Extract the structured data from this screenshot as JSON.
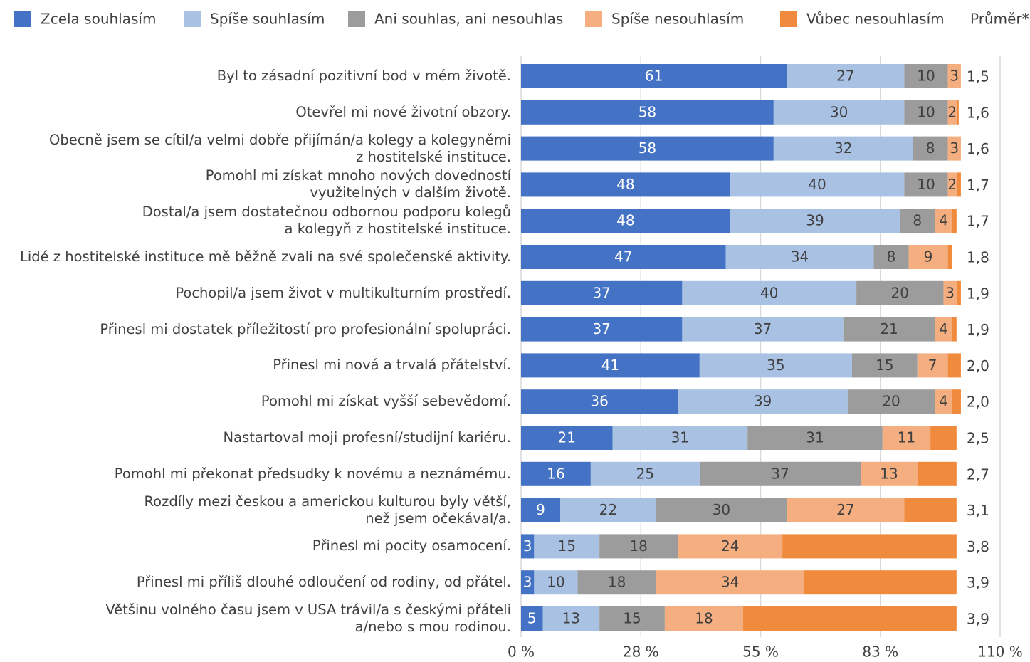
{
  "chart_data": {
    "type": "stacked_barh",
    "legend": "top",
    "grid": true,
    "categories": [
      "Byl to zásadní pozitivní bod v mém životě.",
      "Otevřel mi nové životní obzory.",
      "Obecně jsem se cítil/a velmi dobře přijímán/a kolegy a kolegyněmi\nz hostitelské instituce.",
      "Pomohl mi získat mnoho nových dovedností\nvyužitelných v dalším životě.",
      "Dostal/a jsem dostatečnou odbornou podporu kolegů\na kolegyň z hostitelské instituce.",
      "Lidé z hostitelské instituce mě běžně zvali na své společenské aktivity.",
      "Pochopil/a jsem život v multikulturním prostředí.",
      "Přinesl mi dostatek příležitostí pro profesionální spolupráci.",
      "Přinesl mi nová a trvalá přátelství.",
      "Pomohl mi získat vyšší sebevědomí.",
      "Nastartoval moji profesní/studijní kariéru.",
      "Pomohl mi překonat předsudky k novému a neznámému.",
      "Rozdíly mezi českou a americkou kulturou byly větší,\nnež jsem očekával/a.",
      "Přinesl mi pocity osamocení.",
      "Přinesl mi příliš dlouhé odloučení od rodiny, od přátel.",
      "Většinu volného času jsem v USA trávil/a s českými přáteli\na/nebo s mou rodinou."
    ],
    "series": [
      {
        "name": "Zcela souhlasím",
        "color": "#4472C4",
        "label_color": "#ffffff",
        "values": [
          61,
          58,
          58,
          48,
          48,
          47,
          37,
          37,
          41,
          36,
          21,
          16,
          9,
          3,
          3,
          5
        ]
      },
      {
        "name": "Spíše souhlasím",
        "color": "#A9C1E3",
        "label_color": "#404040",
        "values": [
          27,
          30,
          32,
          40,
          39,
          34,
          40,
          37,
          35,
          39,
          31,
          25,
          22,
          15,
          10,
          13
        ]
      },
      {
        "name": "Ani souhlas, ani nesouhlas",
        "color": "#9C9C9C",
        "label_color": "#404040",
        "values": [
          10,
          10,
          8,
          10,
          8,
          8,
          20,
          21,
          15,
          20,
          31,
          37,
          30,
          18,
          18,
          15
        ]
      },
      {
        "name": "Spíše nesouhlasím",
        "color": "#F5AE80",
        "label_color": "#404040",
        "values": [
          3,
          2,
          3,
          2,
          4,
          9,
          3,
          4,
          7,
          4,
          11,
          13,
          27,
          24,
          34,
          18
        ]
      },
      {
        "name": "Vůbec nesouhlasím",
        "color": "#F08A3C",
        "labels": false,
        "values": [
          0,
          0.5,
          0,
          1,
          1,
          1,
          1,
          1,
          3,
          2,
          6,
          9,
          12,
          40,
          35,
          49
        ]
      }
    ],
    "averages": {
      "name": "Průměr*",
      "values": [
        1.5,
        1.6,
        1.6,
        1.7,
        1.7,
        1.8,
        1.9,
        1.9,
        2.0,
        2.0,
        2.5,
        2.7,
        3.1,
        3.8,
        3.9,
        3.9
      ],
      "value_labels": [
        "1,5",
        "1,6",
        "1,6",
        "1,7",
        "1,7",
        "1,8",
        "1,9",
        "1,9",
        "2,0",
        "2,0",
        "2,5",
        "2,7",
        "3,1",
        "3,8",
        "3,9",
        "3,9"
      ]
    },
    "xlim": [
      0,
      110
    ],
    "xticks": [
      {
        "value": 0,
        "label": "0 %"
      },
      {
        "value": 27.5,
        "label": "28 %"
      },
      {
        "value": 55,
        "label": "55 %"
      },
      {
        "value": 82.5,
        "label": "83 %"
      },
      {
        "value": 110,
        "label": "110 %"
      }
    ]
  }
}
